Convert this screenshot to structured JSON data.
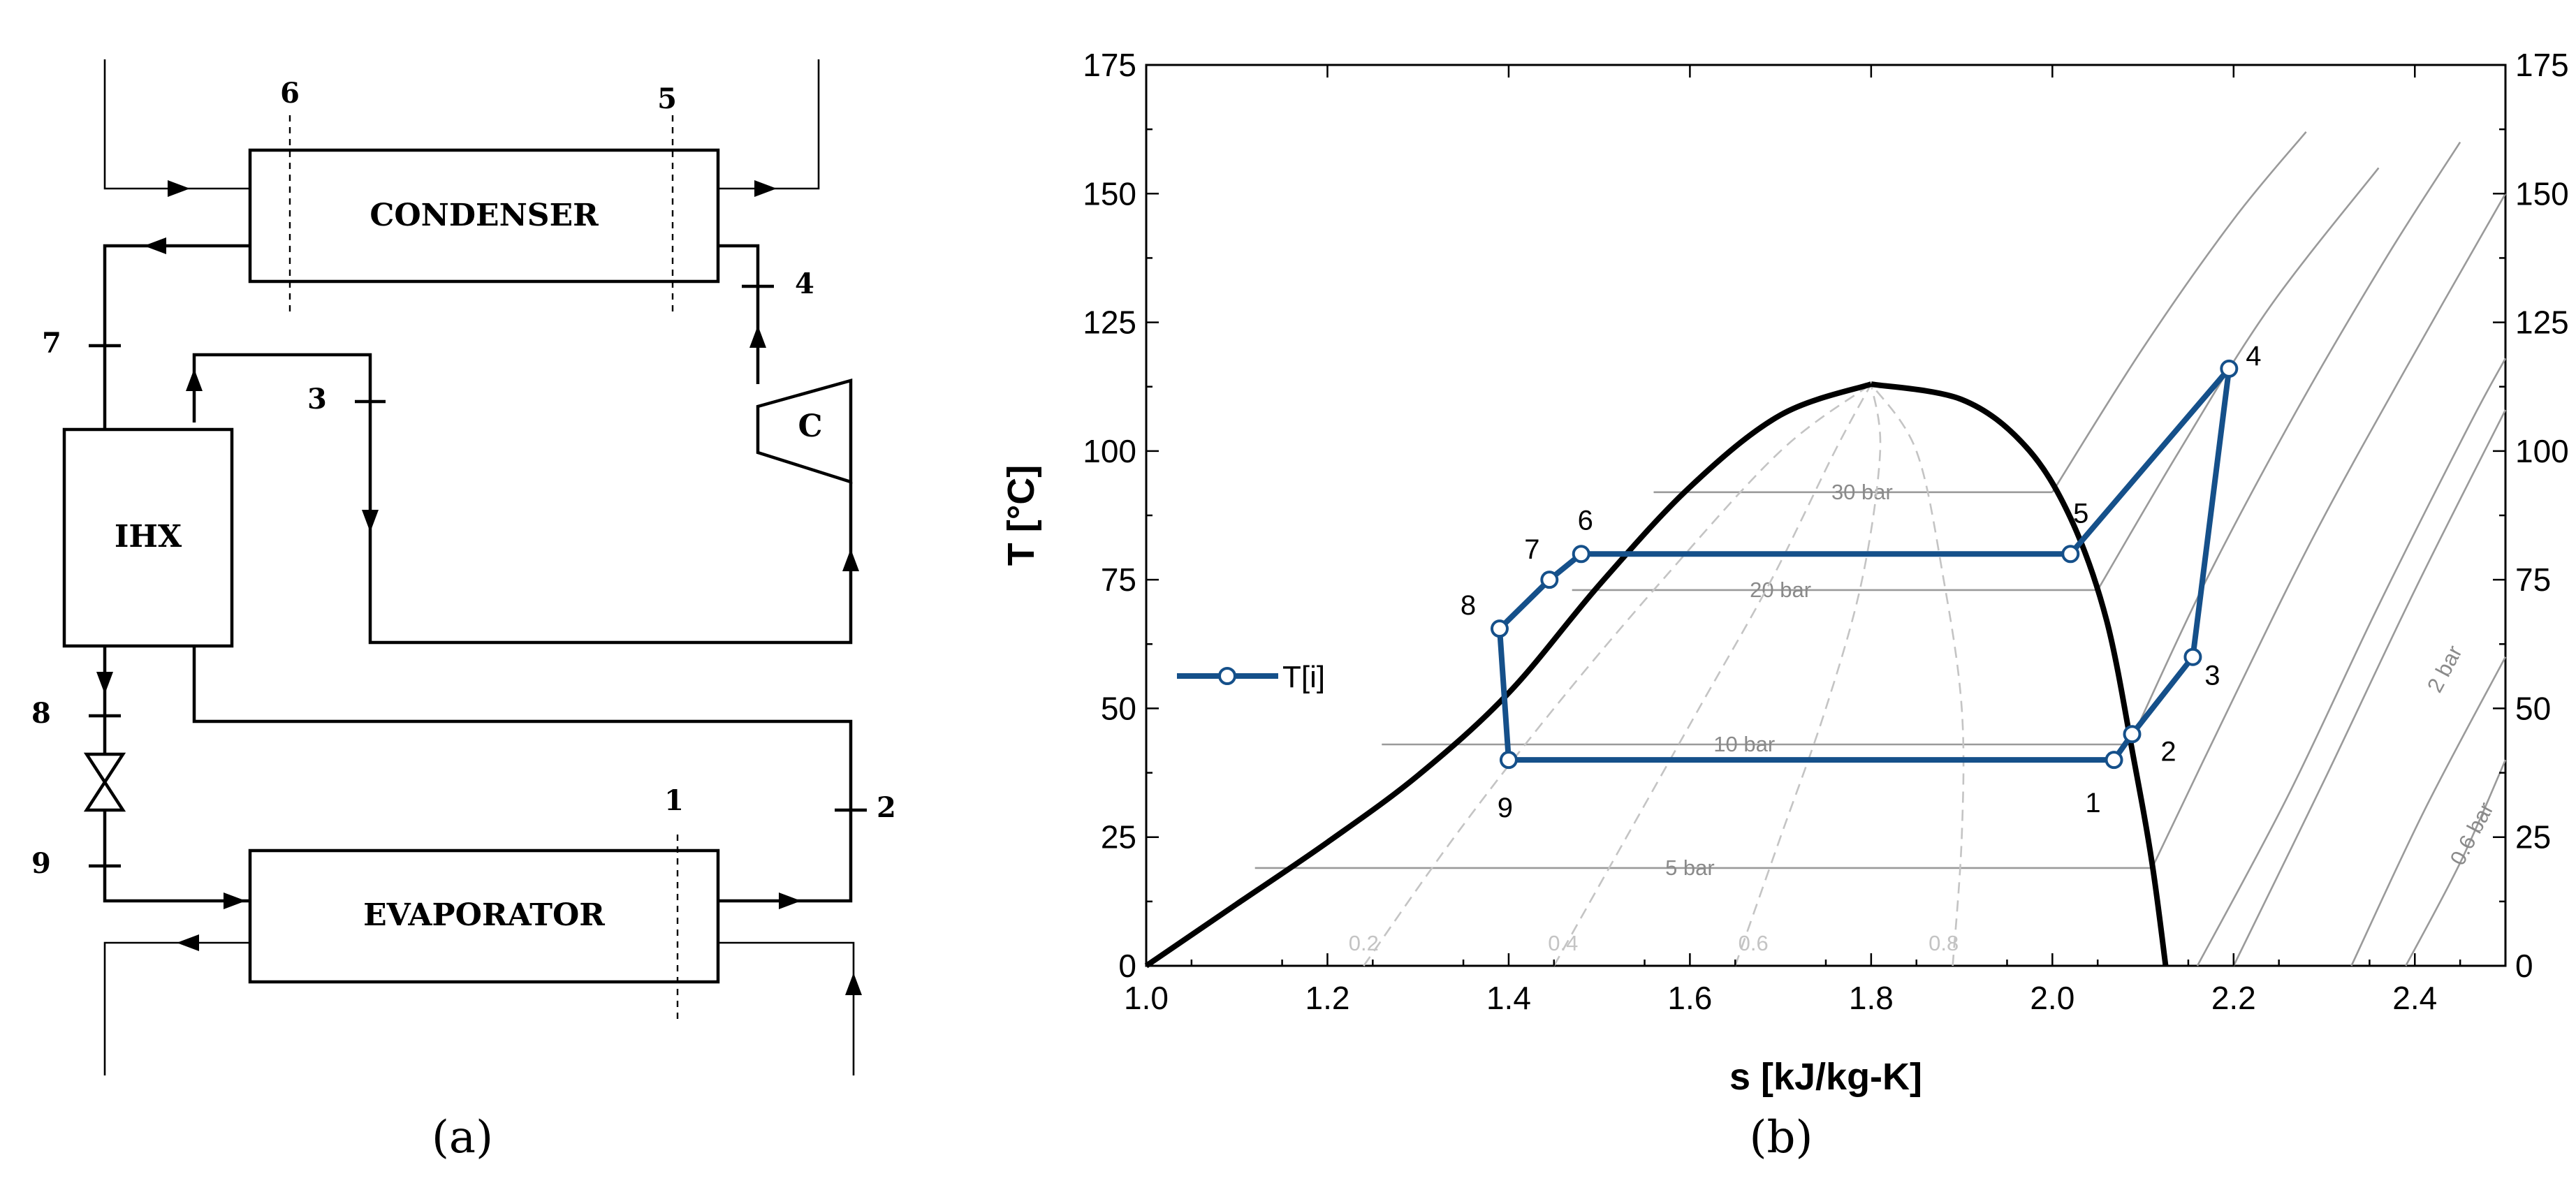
{
  "panel_a": {
    "caption": "(a)",
    "components": {
      "condenser": "CONDENSER",
      "evaporator": "EVAPORATOR",
      "ihx": "IHX",
      "compressor": "C"
    },
    "state_numbers": [
      "1",
      "2",
      "3",
      "4",
      "5",
      "6",
      "7",
      "8",
      "9"
    ]
  },
  "panel_b": {
    "caption": "(b)",
    "chart_data": {
      "type": "line",
      "title": "",
      "xlabel": "s [kJ/kg-K]",
      "ylabel": "T [°C]",
      "xlim": [
        1.0,
        2.5
      ],
      "ylim": [
        0,
        175
      ],
      "xticks": [
        "1.0",
        "1.2",
        "1.4",
        "1.6",
        "1.8",
        "2.0",
        "2.2",
        "2.4"
      ],
      "yticks": [
        "0",
        "25",
        "50",
        "75",
        "100",
        "125",
        "150",
        "175"
      ],
      "right_yticks": [
        "0",
        "25",
        "50",
        "75",
        "100",
        "125",
        "150",
        "175"
      ],
      "grid": false,
      "legend": {
        "position": "left",
        "entries": [
          "T[i]"
        ]
      },
      "series": [
        {
          "name": "T[i]",
          "color": "#15508a",
          "points": [
            {
              "label": "1",
              "s": 2.068,
              "T": 40
            },
            {
              "label": "2",
              "s": 2.088,
              "T": 45
            },
            {
              "label": "3",
              "s": 2.155,
              "T": 60
            },
            {
              "label": "4",
              "s": 2.195,
              "T": 116
            },
            {
              "label": "5",
              "s": 2.02,
              "T": 80
            },
            {
              "label": "6",
              "s": 1.48,
              "T": 80
            },
            {
              "label": "7",
              "s": 1.445,
              "T": 75
            },
            {
              "label": "8",
              "s": 1.39,
              "T": 65.5
            },
            {
              "label": "9",
              "s": 1.4,
              "T": 40
            }
          ],
          "path_order": [
            "1",
            "2",
            "3",
            "4",
            "5",
            "6",
            "7",
            "8",
            "9",
            "1"
          ]
        }
      ],
      "saturation_dome": {
        "color": "#000000",
        "liquid": [
          [
            1.0,
            0
          ],
          [
            1.1,
            12
          ],
          [
            1.2,
            24
          ],
          [
            1.3,
            37
          ],
          [
            1.4,
            53
          ],
          [
            1.5,
            74
          ],
          [
            1.6,
            93
          ],
          [
            1.7,
            107
          ],
          [
            1.8,
            113
          ]
        ],
        "vapor": [
          [
            1.8,
            113
          ],
          [
            1.9,
            110
          ],
          [
            1.97,
            101
          ],
          [
            2.02,
            87
          ],
          [
            2.06,
            67
          ],
          [
            2.09,
            40
          ],
          [
            2.11,
            20
          ],
          [
            2.125,
            0
          ]
        ]
      },
      "isobars": [
        {
          "label": "30 bar",
          "T_sat": 92,
          "s_liq": 1.56,
          "s_vap": 2.0
        },
        {
          "label": "20 bar",
          "T_sat": 73,
          "s_liq": 1.47,
          "s_vap": 2.05
        },
        {
          "label": "10 bar",
          "T_sat": 43,
          "s_liq": 1.26,
          "s_vap": 2.085
        },
        {
          "label": "5 bar",
          "T_sat": 19,
          "s_liq": 1.12,
          "s_vap": 2.11
        },
        {
          "label": "2 bar",
          "T_sat": null
        },
        {
          "label": "0.6 bar",
          "T_sat": null
        }
      ],
      "quality_lines": [
        "0.2",
        "0.4",
        "0.6",
        "0.8"
      ]
    }
  }
}
